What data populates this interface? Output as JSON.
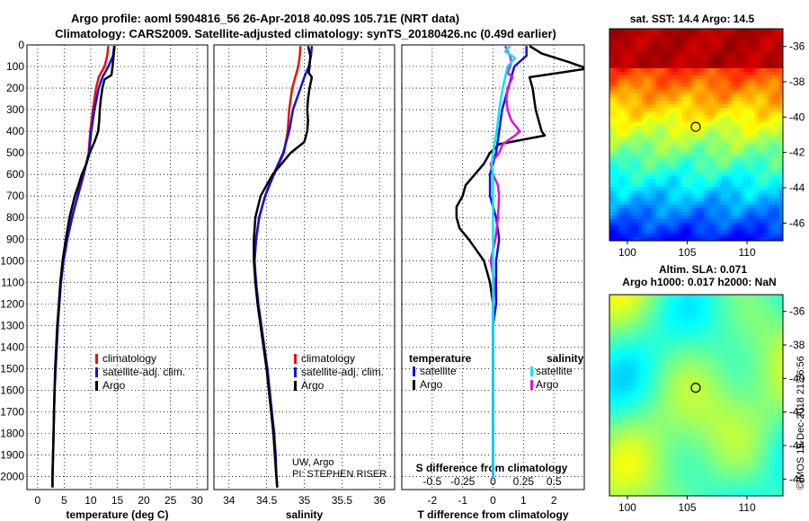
{
  "title": {
    "line1": "Argo profile: aoml 5904816_56 26-Apr-2018 40.09S 105.71E (NRT data)",
    "line2": "Climatology: CARS2009. Satellite-adjusted climatology: synTS_20180426.nc (0.49d earlier)"
  },
  "depth_ticks": [
    0,
    100,
    200,
    300,
    400,
    500,
    600,
    700,
    800,
    900,
    1000,
    1100,
    1200,
    1300,
    1400,
    1500,
    1600,
    1700,
    1800,
    1900,
    2000
  ],
  "colors": {
    "climatology": "#e81010",
    "satellite": "#1010e0",
    "argo": "#000000",
    "sal_satellite": "#00e8f0",
    "sal_argo": "#e010e0"
  },
  "chart_data": [
    {
      "type": "line",
      "name": "temperature",
      "xlabel": "temperature (deg C)",
      "xlim": [
        -2,
        32
      ],
      "ylim": [
        2060,
        0
      ],
      "x_ticks": [
        0,
        5,
        10,
        15,
        20,
        25,
        30
      ],
      "legend": [
        "climatology",
        "satellite-adj. clim.",
        "Argo"
      ],
      "series": [
        {
          "name": "climatology",
          "depth": [
            5,
            50,
            100,
            150,
            200,
            300,
            400,
            500,
            600,
            700,
            800,
            900,
            1000,
            1100,
            1200,
            1300,
            1400,
            1500,
            1600,
            1700,
            1800,
            1900,
            2000,
            2050
          ],
          "values": [
            13.3,
            13.1,
            12.6,
            11.5,
            11.0,
            10.4,
            9.9,
            9.6,
            8.7,
            7.6,
            6.4,
            5.5,
            4.8,
            4.3,
            4.0,
            3.8,
            3.6,
            3.4,
            3.2,
            3.1,
            3.0,
            2.9,
            2.8,
            2.8
          ]
        },
        {
          "name": "satellite-adj. clim.",
          "depth": [
            5,
            50,
            100,
            150,
            200,
            300,
            400,
            500,
            600,
            700,
            800,
            900,
            1000,
            1100,
            1200,
            1300,
            1400,
            1500,
            1600,
            1700,
            1800,
            1900,
            2000,
            2050
          ],
          "values": [
            14.4,
            14.2,
            13.3,
            12.2,
            11.5,
            10.7,
            10.1,
            9.7,
            8.6,
            7.5,
            6.5,
            5.6,
            4.9,
            4.4,
            4.1,
            3.8,
            3.6,
            3.4,
            3.2,
            3.1,
            3.0,
            2.9,
            2.8,
            2.8
          ]
        },
        {
          "name": "Argo",
          "depth": [
            5,
            50,
            100,
            140,
            160,
            200,
            250,
            300,
            350,
            400,
            450,
            500,
            550,
            600,
            650,
            700,
            800,
            900,
            1000,
            1100,
            1200,
            1300,
            1400,
            1500,
            1600,
            1700,
            1800,
            1900,
            2000,
            2050
          ],
          "values": [
            14.5,
            14.3,
            14.1,
            13.9,
            12.6,
            12.2,
            11.9,
            11.7,
            11.6,
            11.4,
            10.7,
            9.8,
            9.2,
            8.3,
            7.7,
            7.0,
            6.0,
            5.3,
            4.7,
            4.3,
            4.0,
            3.7,
            3.5,
            3.3,
            3.2,
            3.1,
            3.0,
            2.9,
            2.8,
            2.8
          ]
        }
      ]
    },
    {
      "type": "line",
      "name": "salinity",
      "xlabel": "salinity",
      "xlim": [
        33.8,
        36.2
      ],
      "ylim": [
        2060,
        0
      ],
      "x_ticks": [
        34,
        34.5,
        35,
        35.5,
        36
      ],
      "x_tick_labels": [
        "34",
        "34.5",
        "35",
        "35.5",
        "36"
      ],
      "legend": [
        "climatology",
        "satellite-adj. clim.",
        "Argo"
      ],
      "annotation": [
        "UW, Argo",
        "PI: STEPHEN RISER"
      ],
      "series": [
        {
          "name": "climatology",
          "depth": [
            5,
            50,
            100,
            150,
            200,
            300,
            400,
            500,
            600,
            700,
            800,
            900,
            1000,
            1100,
            1200,
            1300,
            1400,
            1500,
            1600,
            1700,
            1800,
            1900,
            2000,
            2050
          ],
          "values": [
            34.95,
            34.94,
            34.92,
            34.88,
            34.84,
            34.8,
            34.78,
            34.73,
            34.6,
            34.48,
            34.4,
            34.36,
            34.34,
            34.35,
            34.38,
            34.42,
            34.46,
            34.5,
            34.53,
            34.56,
            34.59,
            34.61,
            34.63,
            34.64
          ]
        },
        {
          "name": "satellite-adj. clim.",
          "depth": [
            5,
            50,
            100,
            150,
            200,
            300,
            400,
            500,
            600,
            700,
            800,
            900,
            1000,
            1100,
            1200,
            1300,
            1400,
            1500,
            1600,
            1700,
            1800,
            1900,
            2000,
            2050
          ],
          "values": [
            35.1,
            35.09,
            35.06,
            35.0,
            34.95,
            34.85,
            34.8,
            34.72,
            34.59,
            34.48,
            34.4,
            34.36,
            34.34,
            34.36,
            34.39,
            34.43,
            34.47,
            34.51,
            34.54,
            34.57,
            34.6,
            34.62,
            34.63,
            34.64
          ]
        },
        {
          "name": "Argo",
          "depth": [
            5,
            50,
            100,
            130,
            150,
            200,
            250,
            300,
            350,
            400,
            450,
            500,
            550,
            600,
            700,
            800,
            900,
            1000,
            1100,
            1200,
            1300,
            1400,
            1500,
            1600,
            1700,
            1800,
            1900,
            2000,
            2050
          ],
          "values": [
            35.05,
            35.08,
            35.07,
            35.06,
            35.1,
            35.07,
            35.05,
            35.04,
            35.05,
            35.04,
            35.0,
            34.82,
            34.7,
            34.58,
            34.42,
            34.35,
            34.33,
            34.33,
            34.35,
            34.38,
            34.42,
            34.46,
            34.5,
            34.53,
            34.56,
            34.59,
            34.61,
            34.63,
            34.64
          ]
        }
      ]
    },
    {
      "type": "line",
      "name": "difference from climatology",
      "xlabel": "T difference from climatology",
      "top_xlabel": "S difference from climatology",
      "xlim": [
        -3,
        3
      ],
      "top_xlim": [
        -0.75,
        0.75
      ],
      "ylim": [
        2060,
        0
      ],
      "x_ticks": [
        -2,
        -1,
        0,
        1,
        2
      ],
      "x_tick_labels": [
        "-2",
        "-1",
        "0",
        "1",
        "2"
      ],
      "top_ticks": [
        -0.5,
        -0.25,
        0,
        0.25,
        0.5
      ],
      "top_tick_labels": [
        "-0.5",
        "-0.25",
        "0",
        "0.25",
        "0.5"
      ],
      "legend_left_title": "temperature",
      "legend_right_title": "salinity",
      "legend": [
        "satellite",
        "Argo",
        "satellite",
        "Argo"
      ],
      "series": [
        {
          "name": "T satellite",
          "axis": "bottom",
          "depth": [
            5,
            50,
            100,
            150,
            200,
            300,
            400,
            500,
            600,
            700,
            800,
            900,
            1000,
            1100,
            1200,
            1300,
            1400,
            1500,
            1600,
            1700,
            1800,
            1900,
            2000
          ],
          "values": [
            1.1,
            1.1,
            0.7,
            0.6,
            0.5,
            0.3,
            0.2,
            0.1,
            -0.1,
            -0.1,
            0.1,
            0.2,
            0.1,
            0.1,
            0.1,
            0.0,
            0.0,
            0.0,
            0.0,
            0.0,
            0.0,
            0.0,
            0.0
          ]
        },
        {
          "name": "T Argo",
          "axis": "bottom",
          "depth": [
            5,
            40,
            80,
            110,
            150,
            200,
            300,
            400,
            420,
            460,
            500,
            550,
            600,
            650,
            700,
            750,
            800,
            850,
            900,
            1000,
            1100,
            1200,
            1300,
            1500,
            1700,
            2000
          ],
          "values": [
            1.2,
            1.6,
            2.5,
            3.1,
            1.2,
            1.3,
            1.4,
            1.6,
            1.7,
            0.2,
            -0.1,
            -0.3,
            -0.6,
            -0.9,
            -1.0,
            -1.2,
            -1.2,
            -1.1,
            -0.8,
            -0.3,
            -0.1,
            0.0,
            0.0,
            0.0,
            0.0,
            0.0
          ]
        },
        {
          "name": "S satellite",
          "axis": "top",
          "depth": [
            5,
            30,
            60,
            100,
            150,
            200,
            300,
            400,
            500,
            550,
            600,
            700,
            800,
            900,
            1000,
            1100,
            1200,
            1300,
            1500,
            1700,
            2000
          ],
          "values": [
            0.14,
            0.1,
            0.18,
            0.12,
            0.1,
            0.08,
            0.05,
            0.03,
            0.0,
            -0.01,
            0.0,
            0.0,
            0.0,
            0.0,
            0.0,
            0.0,
            0.0,
            0.0,
            0.0,
            0.0,
            0.0
          ]
        },
        {
          "name": "S Argo",
          "axis": "top",
          "depth": [
            5,
            30,
            50,
            80,
            100,
            130,
            150,
            200,
            250,
            300,
            350,
            400,
            420,
            460,
            500,
            550,
            600,
            650,
            700,
            800,
            900,
            1000,
            1100,
            1200,
            1300,
            1500,
            1700,
            2000
          ],
          "values": [
            0.1,
            0.12,
            0.14,
            0.15,
            0.14,
            0.12,
            0.16,
            0.12,
            0.11,
            0.12,
            0.15,
            0.22,
            0.18,
            0.08,
            0.05,
            -0.02,
            0.0,
            0.04,
            0.05,
            0.04,
            0.02,
            -0.02,
            0.01,
            0.0,
            0.0,
            0.0,
            0.0,
            0.0
          ]
        }
      ]
    }
  ],
  "sst_map": {
    "title": "sat. SST: 14.4 Argo: 14.5",
    "y_ticks": [
      "-36",
      "-38",
      "-40",
      "-42",
      "-44",
      "-46"
    ],
    "x_ticks": [
      "100",
      "105",
      "110"
    ]
  },
  "sla_map": {
    "title1": "Altim. SLA: 0.071",
    "title2": "Argo h1000: 0.017 h2000: NaN",
    "y_ticks": [
      "-36",
      "-38",
      "-40",
      "-42",
      "-44",
      "-46"
    ],
    "x_ticks": [
      "100",
      "105",
      "110"
    ]
  },
  "credit": "©IMOS 19-Dec-2018 21:26:56"
}
